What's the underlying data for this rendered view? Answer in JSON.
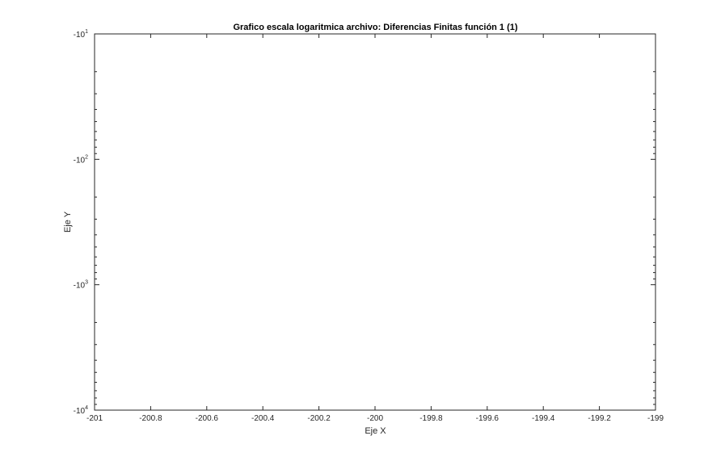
{
  "chart_data": {
    "type": "line",
    "title": "Grafico escala logaritmica archivo: Diferencias Finitas función 1 (1)",
    "xlabel": "Eje X",
    "ylabel": "Eje Y",
    "xlim": [
      -201,
      -199
    ],
    "x_ticks": [
      -201,
      -200.8,
      -200.6,
      -200.4,
      -200.2,
      -200,
      -199.8,
      -199.6,
      -199.4,
      -199.2,
      -199
    ],
    "x_tick_labels": [
      "-201",
      "-200.8",
      "-200.6",
      "-200.4",
      "-200.2",
      "-200",
      "-199.8",
      "-199.6",
      "-199.4",
      "-199.2",
      "-199"
    ],
    "y_scale": "log",
    "ylim": [
      -10000,
      -10
    ],
    "y_tick_mantissa": "-10",
    "y_tick_exponents": [
      "1",
      "2",
      "3",
      "4"
    ],
    "grid": false,
    "series": []
  }
}
